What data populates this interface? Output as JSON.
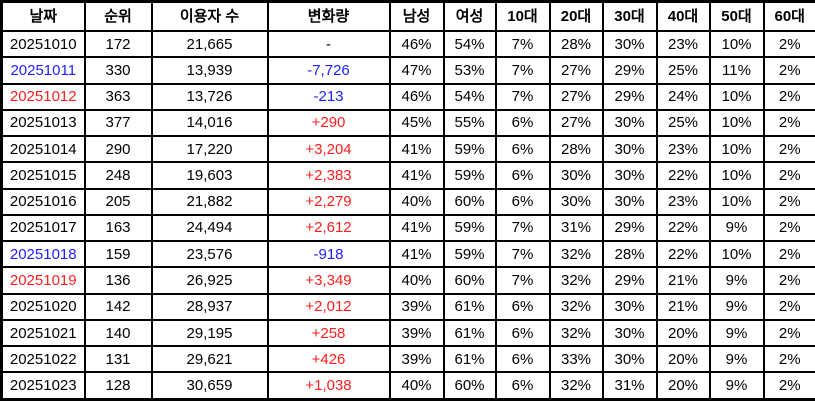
{
  "colors": {
    "default_text": "#000000",
    "weekend_saturday_blue": "#1e1eff",
    "weekend_sunday_red": "#ff1e1e",
    "change_negative_blue": "#1e1eff",
    "change_positive_red": "#ff1e1e",
    "border": "#000000",
    "background": "#ffffff"
  },
  "chart_data": {
    "type": "table",
    "columns": [
      "날짜",
      "순위",
      "이용자 수",
      "변화량",
      "남성",
      "여성",
      "10대",
      "20대",
      "30대",
      "40대",
      "50대",
      "60대"
    ],
    "rows": [
      {
        "cells": [
          "20251010",
          "172",
          "21,665",
          "-",
          "46%",
          "54%",
          "7%",
          "28%",
          "30%",
          "23%",
          "10%",
          "2%"
        ],
        "date_color": "#000000",
        "change_color": "#000000"
      },
      {
        "cells": [
          "20251011",
          "330",
          "13,939",
          "-7,726",
          "47%",
          "53%",
          "7%",
          "27%",
          "29%",
          "25%",
          "11%",
          "2%"
        ],
        "date_color": "#1e1eff",
        "change_color": "#1e1eff"
      },
      {
        "cells": [
          "20251012",
          "363",
          "13,726",
          "-213",
          "46%",
          "54%",
          "7%",
          "27%",
          "29%",
          "24%",
          "10%",
          "2%"
        ],
        "date_color": "#ff1e1e",
        "change_color": "#1e1eff"
      },
      {
        "cells": [
          "20251013",
          "377",
          "14,016",
          "+290",
          "45%",
          "55%",
          "6%",
          "27%",
          "30%",
          "25%",
          "10%",
          "2%"
        ],
        "date_color": "#000000",
        "change_color": "#ff1e1e"
      },
      {
        "cells": [
          "20251014",
          "290",
          "17,220",
          "+3,204",
          "41%",
          "59%",
          "6%",
          "28%",
          "30%",
          "23%",
          "10%",
          "2%"
        ],
        "date_color": "#000000",
        "change_color": "#ff1e1e"
      },
      {
        "cells": [
          "20251015",
          "248",
          "19,603",
          "+2,383",
          "41%",
          "59%",
          "6%",
          "30%",
          "30%",
          "22%",
          "10%",
          "2%"
        ],
        "date_color": "#000000",
        "change_color": "#ff1e1e"
      },
      {
        "cells": [
          "20251016",
          "205",
          "21,882",
          "+2,279",
          "40%",
          "60%",
          "6%",
          "30%",
          "30%",
          "23%",
          "10%",
          "2%"
        ],
        "date_color": "#000000",
        "change_color": "#ff1e1e"
      },
      {
        "cells": [
          "20251017",
          "163",
          "24,494",
          "+2,612",
          "41%",
          "59%",
          "7%",
          "31%",
          "29%",
          "22%",
          "9%",
          "2%"
        ],
        "date_color": "#000000",
        "change_color": "#ff1e1e"
      },
      {
        "cells": [
          "20251018",
          "159",
          "23,576",
          "-918",
          "41%",
          "59%",
          "7%",
          "32%",
          "28%",
          "22%",
          "10%",
          "2%"
        ],
        "date_color": "#1e1eff",
        "change_color": "#1e1eff"
      },
      {
        "cells": [
          "20251019",
          "136",
          "26,925",
          "+3,349",
          "40%",
          "60%",
          "7%",
          "32%",
          "29%",
          "21%",
          "9%",
          "2%"
        ],
        "date_color": "#ff1e1e",
        "change_color": "#ff1e1e"
      },
      {
        "cells": [
          "20251020",
          "142",
          "28,937",
          "+2,012",
          "39%",
          "61%",
          "6%",
          "32%",
          "30%",
          "21%",
          "9%",
          "2%"
        ],
        "date_color": "#000000",
        "change_color": "#ff1e1e"
      },
      {
        "cells": [
          "20251021",
          "140",
          "29,195",
          "+258",
          "39%",
          "61%",
          "6%",
          "32%",
          "30%",
          "20%",
          "9%",
          "2%"
        ],
        "date_color": "#000000",
        "change_color": "#ff1e1e"
      },
      {
        "cells": [
          "20251022",
          "131",
          "29,621",
          "+426",
          "39%",
          "61%",
          "6%",
          "33%",
          "30%",
          "20%",
          "9%",
          "2%"
        ],
        "date_color": "#000000",
        "change_color": "#ff1e1e"
      },
      {
        "cells": [
          "20251023",
          "128",
          "30,659",
          "+1,038",
          "40%",
          "60%",
          "6%",
          "32%",
          "31%",
          "20%",
          "9%",
          "2%"
        ],
        "date_color": "#000000",
        "change_color": "#ff1e1e"
      }
    ]
  }
}
